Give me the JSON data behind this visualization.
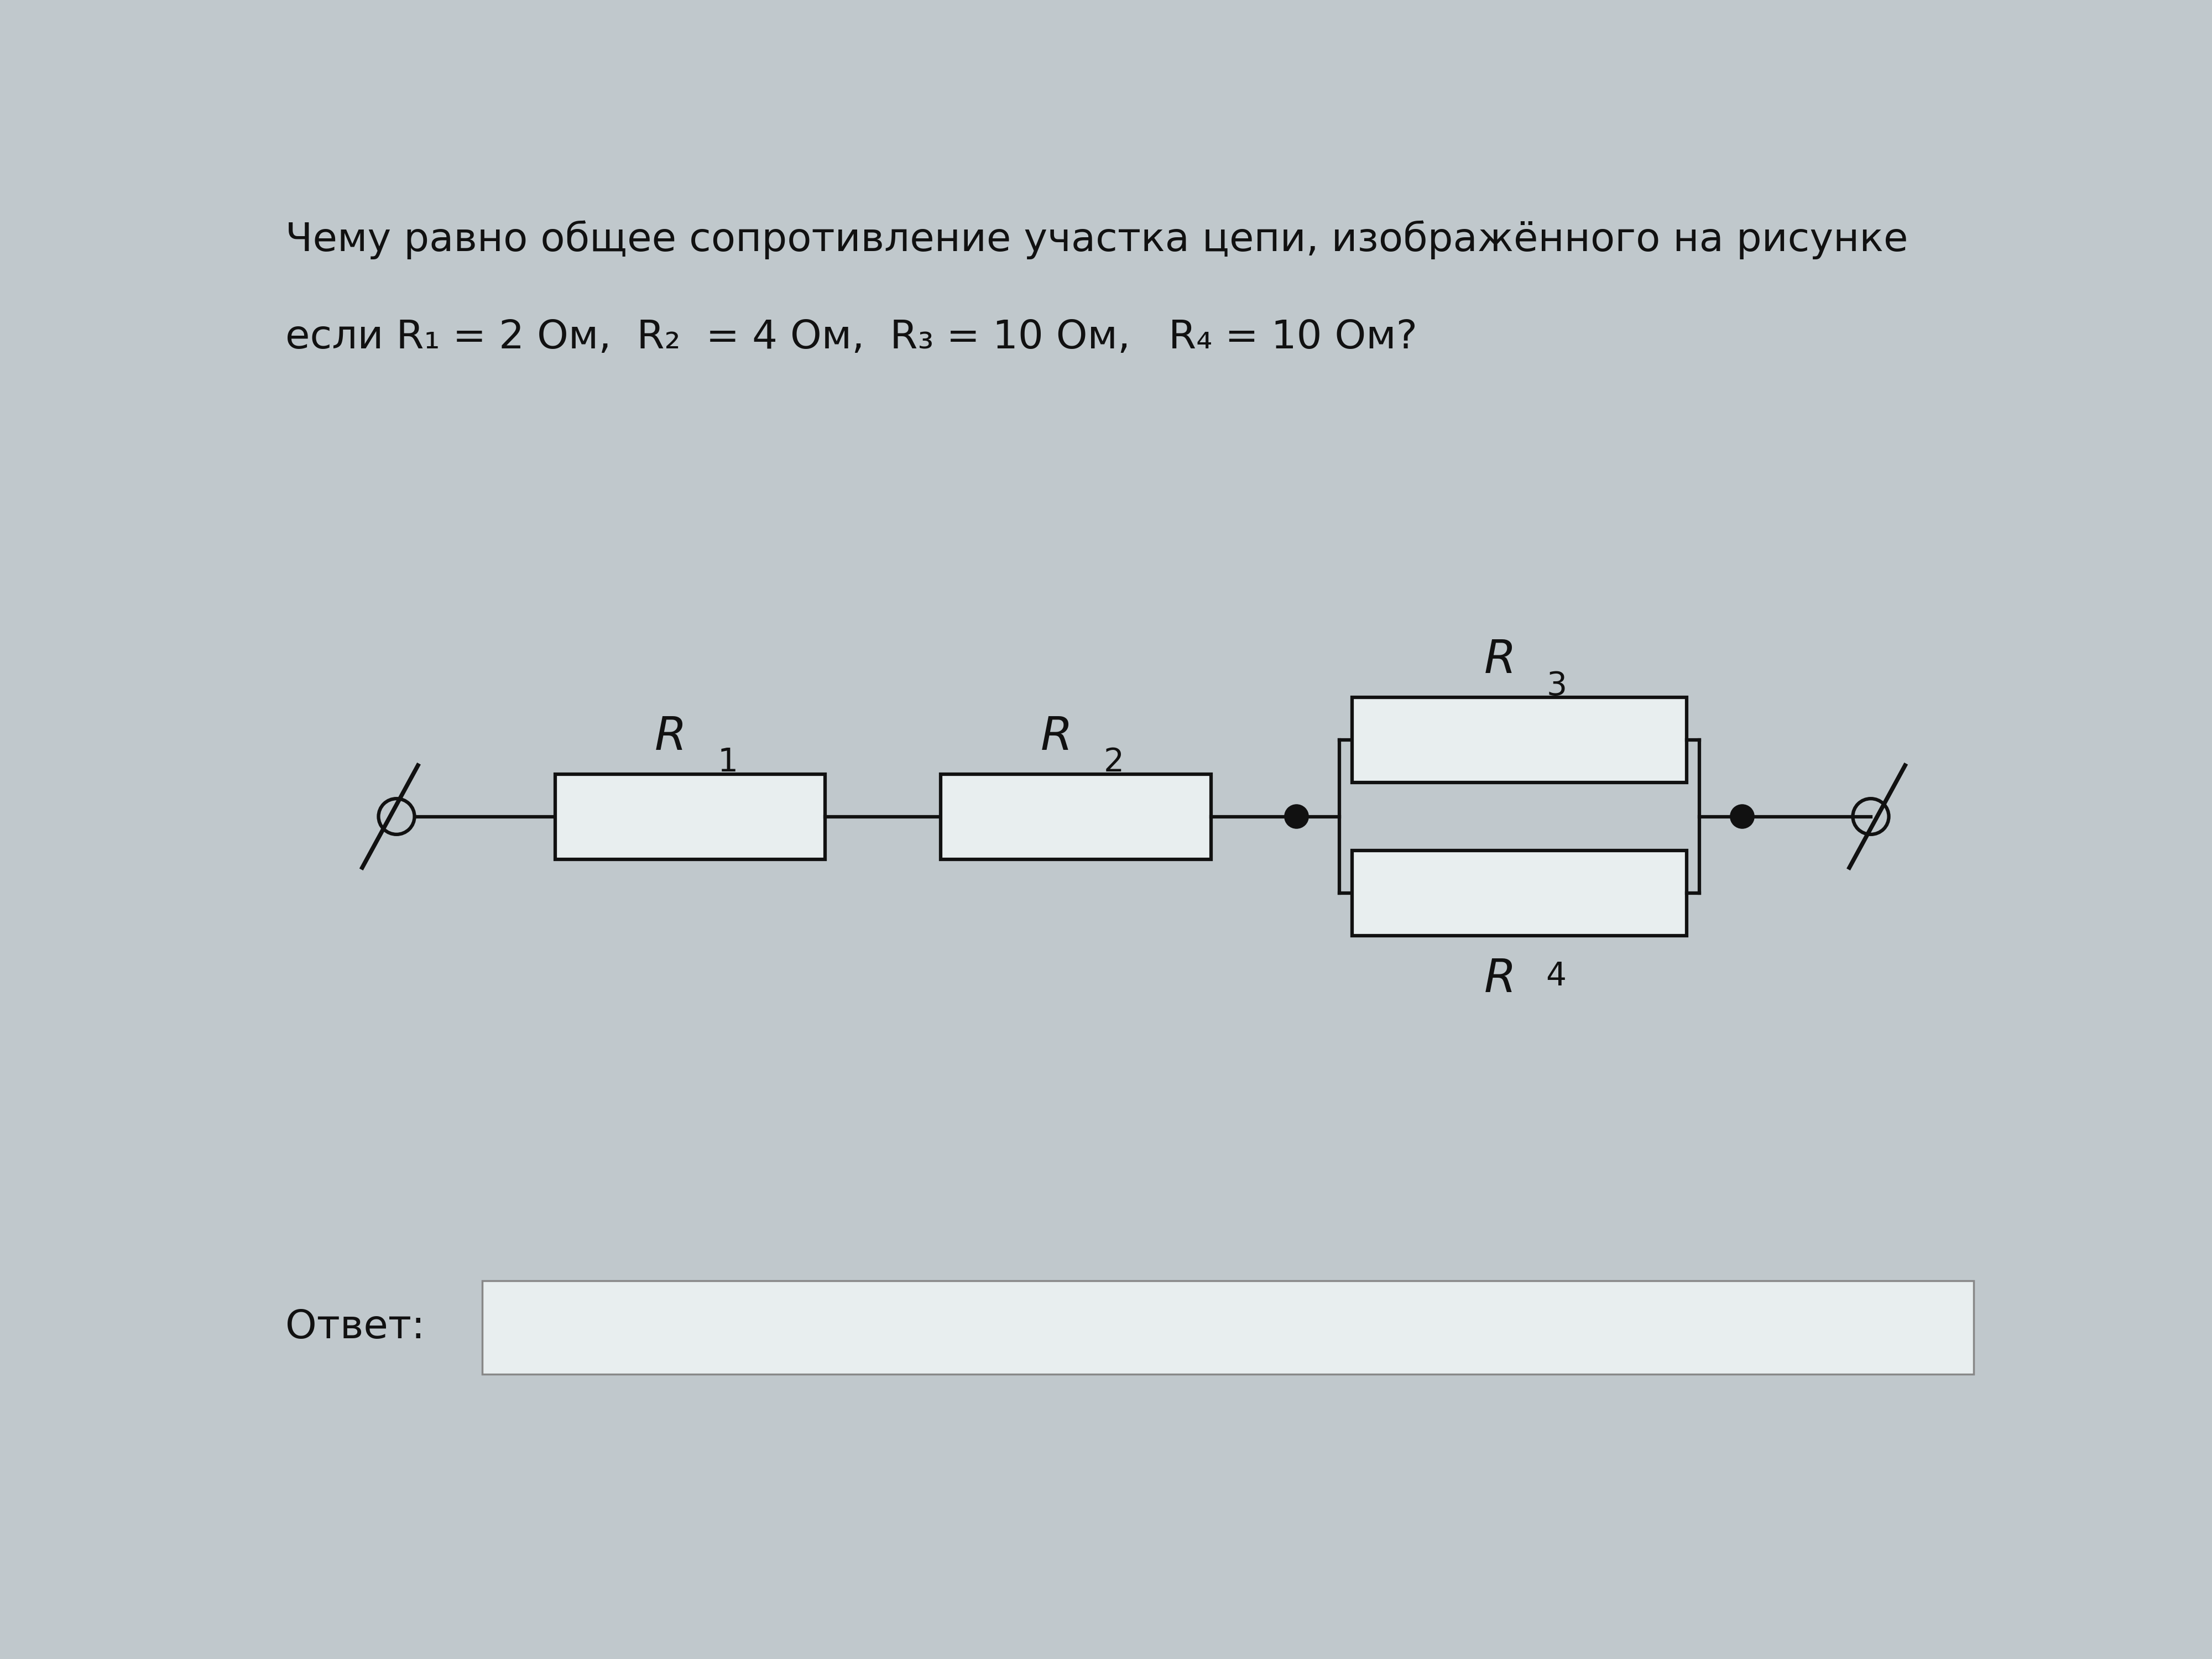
{
  "bg_color": "#c0c8cc",
  "text_color": "#111111",
  "line_color": "#111111",
  "box_face": "#e8eeef",
  "answer_box_face": "#e8eeef",
  "answer_box_edge": "#888888",
  "title_line1": "Чему равно общее сопротивление участка цепи, изображённого на рисунке",
  "title_line2": "если R₁ = 2 Ом,  R₂  = 4 Ом,  R₃ = 10 Ом,   R₄ = 10 Ом?",
  "answer_label": "Ответ:",
  "title_fontsize": 52,
  "label_fontsize_R": 60,
  "label_fontsize_sub": 42,
  "lw": 4.5
}
